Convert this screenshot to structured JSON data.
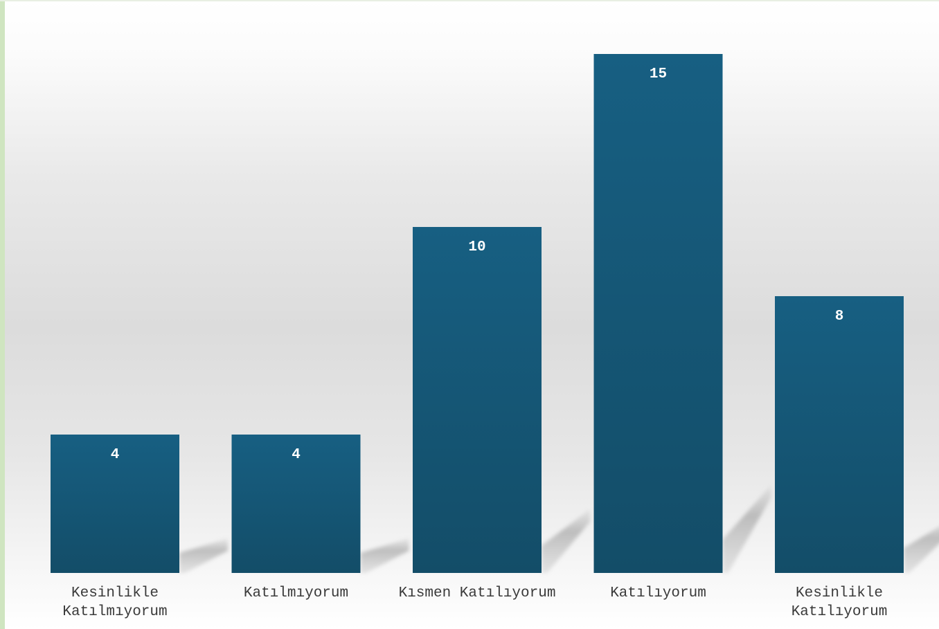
{
  "chart_data": {
    "type": "bar",
    "title": "",
    "xlabel": "",
    "ylabel": "",
    "ylim": [
      0,
      15
    ],
    "grid": false,
    "legend": "none",
    "categories": [
      [
        "Kesinlikle",
        "Katılmıyorum"
      ],
      [
        "Katılmıyorum"
      ],
      [
        "Kısmen Katılıyorum"
      ],
      [
        "Katılıyorum"
      ],
      [
        "Kesinlikle",
        "Katılıyorum"
      ]
    ],
    "values": [
      4,
      4,
      10,
      15,
      8
    ],
    "data_labels": [
      "4",
      "4",
      "10",
      "15",
      "8"
    ]
  },
  "colors": {
    "bar_top": "#175f82",
    "bar_bottom": "#134d68",
    "value_label": "#ffffff",
    "category_label": "#3a3a3a",
    "frame_left": "#cfe5c0",
    "shadow": "#9a9a9a"
  }
}
